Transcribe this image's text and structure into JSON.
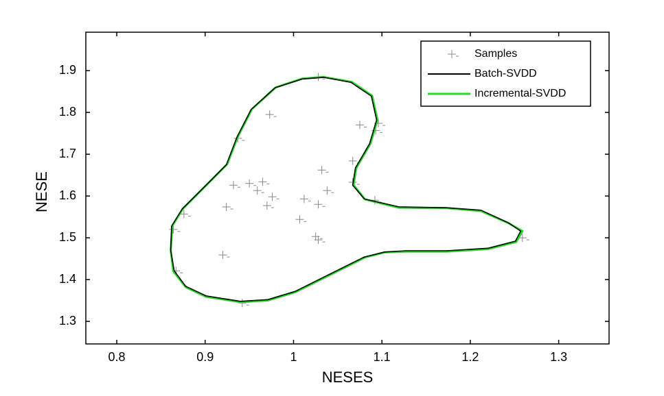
{
  "chart_data": {
    "type": "line",
    "xlabel": "NESES",
    "ylabel": "NESE",
    "xlim": [
      0.765,
      1.357
    ],
    "ylim": [
      1.246,
      1.992
    ],
    "xticks": [
      0.8,
      0.9,
      1,
      1.1,
      1.2,
      1.3
    ],
    "yticks": [
      1.3,
      1.4,
      1.5,
      1.6,
      1.7,
      1.8,
      1.9
    ],
    "legend": "upper right",
    "series": [
      {
        "name": "Samples",
        "type": "scatter",
        "color": "#888888",
        "x": [
          1.028,
          0.973,
          0.937,
          1.096,
          1.075,
          1.093,
          1.067,
          1.032,
          0.932,
          0.95,
          0.965,
          0.959,
          1.038,
          1.067,
          0.976,
          1.012,
          1.028,
          1.092,
          0.924,
          0.97,
          0.876,
          1.007,
          1.025,
          1.028,
          1.259,
          0.92,
          0.867,
          0.942,
          0.864
        ],
        "y": [
          1.885,
          1.795,
          1.738,
          1.774,
          1.77,
          1.757,
          1.684,
          1.662,
          1.626,
          1.63,
          1.634,
          1.613,
          1.613,
          1.633,
          1.598,
          1.593,
          1.58,
          1.59,
          1.574,
          1.577,
          1.557,
          1.544,
          1.503,
          1.495,
          1.5,
          1.459,
          1.421,
          1.344,
          1.52
        ]
      },
      {
        "name": "Incremental-SVDD",
        "type": "line",
        "color": "#22dd22",
        "x": [
          0.861,
          0.863,
          0.875,
          0.902,
          0.925,
          0.937,
          0.953,
          0.98,
          1.01,
          1.034,
          1.066,
          1.089,
          1.095,
          1.087,
          1.071,
          1.068,
          1.081,
          1.119,
          1.173,
          1.212,
          1.244,
          1.259,
          1.252,
          1.22,
          1.173,
          1.127,
          1.103,
          1.081,
          1.041,
          1.002,
          0.971,
          0.94,
          0.901,
          0.878,
          0.864,
          0.861
        ],
        "y": [
          1.47,
          1.529,
          1.57,
          1.627,
          1.676,
          1.742,
          1.808,
          1.86,
          1.881,
          1.885,
          1.873,
          1.84,
          1.782,
          1.725,
          1.667,
          1.626,
          1.592,
          1.572,
          1.571,
          1.564,
          1.534,
          1.516,
          1.49,
          1.473,
          1.467,
          1.467,
          1.465,
          1.453,
          1.411,
          1.37,
          1.35,
          1.346,
          1.359,
          1.382,
          1.42,
          1.47
        ]
      },
      {
        "name": "Batch-SVDD",
        "type": "line",
        "color": "#000000",
        "x": [
          0.861,
          0.862,
          0.874,
          0.901,
          0.924,
          0.936,
          0.952,
          0.979,
          1.01,
          1.034,
          1.065,
          1.088,
          1.094,
          1.086,
          1.07,
          1.067,
          1.08,
          1.119,
          1.173,
          1.212,
          1.243,
          1.257,
          1.251,
          1.22,
          1.173,
          1.127,
          1.103,
          1.08,
          1.041,
          1.002,
          0.971,
          0.94,
          0.901,
          0.878,
          0.865,
          0.861
        ],
        "y": [
          1.47,
          1.528,
          1.569,
          1.626,
          1.675,
          1.741,
          1.807,
          1.859,
          1.88,
          1.884,
          1.872,
          1.839,
          1.782,
          1.725,
          1.667,
          1.626,
          1.593,
          1.574,
          1.572,
          1.566,
          1.536,
          1.516,
          1.492,
          1.475,
          1.469,
          1.469,
          1.466,
          1.454,
          1.413,
          1.372,
          1.352,
          1.348,
          1.361,
          1.384,
          1.421,
          1.47
        ]
      }
    ]
  }
}
